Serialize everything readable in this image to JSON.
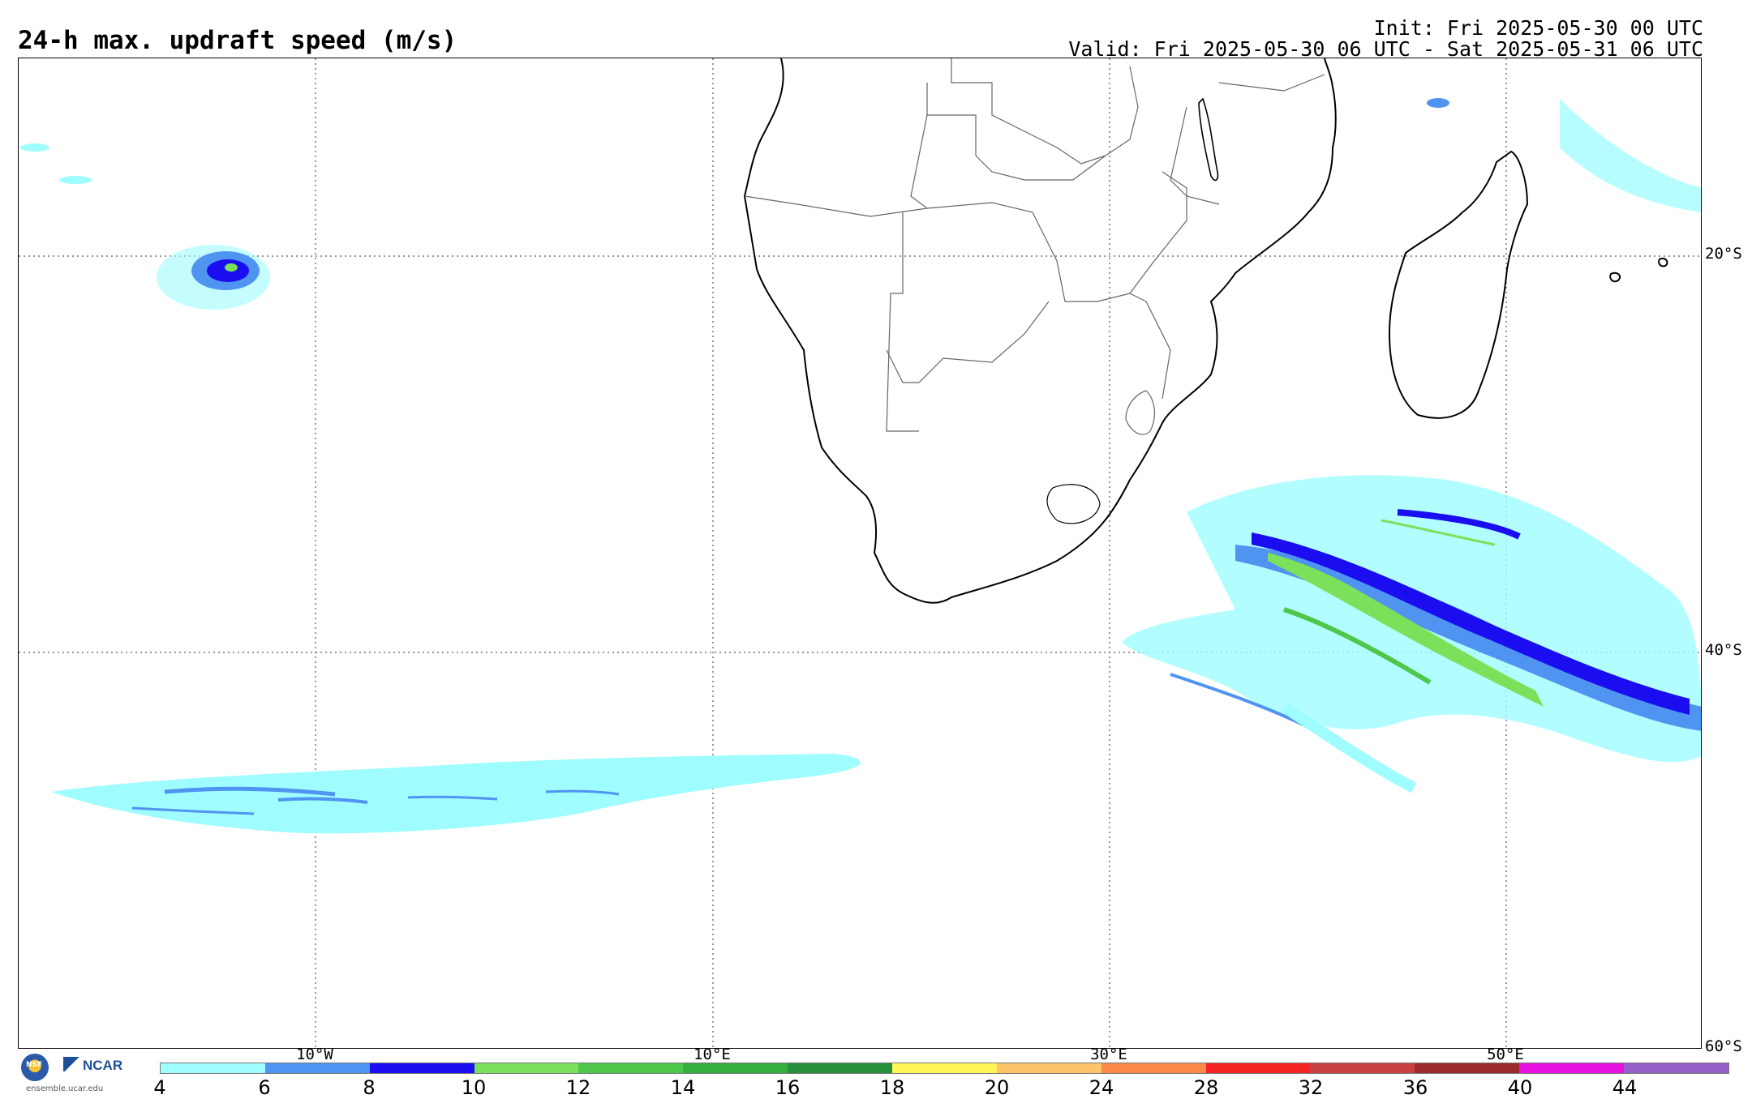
{
  "header": {
    "title": "24-h max. updraft speed (m/s)",
    "init": "Init: Fri 2025-05-30 00 UTC",
    "valid": "Valid: Fri 2025-05-30 06 UTC - Sat 2025-05-31 06 UTC"
  },
  "map": {
    "lat_labels": [
      "20°S",
      "40°S",
      "60°S"
    ],
    "lon_labels": [
      "10°W",
      "10°E",
      "30°E",
      "50°E"
    ],
    "grid_style": "dotted"
  },
  "logos": {
    "nsf": "NSF",
    "ncar": "NCAR",
    "site": "ensemble.ucar.edu"
  },
  "colorbar": {
    "ticks": [
      "4",
      "6",
      "8",
      "10",
      "12",
      "14",
      "16",
      "18",
      "20",
      "24",
      "28",
      "32",
      "36",
      "40",
      "44"
    ],
    "colors": [
      "#9ffcff",
      "#4f94f0",
      "#1a0ef0",
      "#7be05a",
      "#4fc74a",
      "#34ae3c",
      "#258f3c",
      "#fff65a",
      "#fdc46a",
      "#fb8a4a",
      "#f52424",
      "#c84040",
      "#9c2c2c",
      "#e812e0",
      "#9460c8"
    ]
  }
}
